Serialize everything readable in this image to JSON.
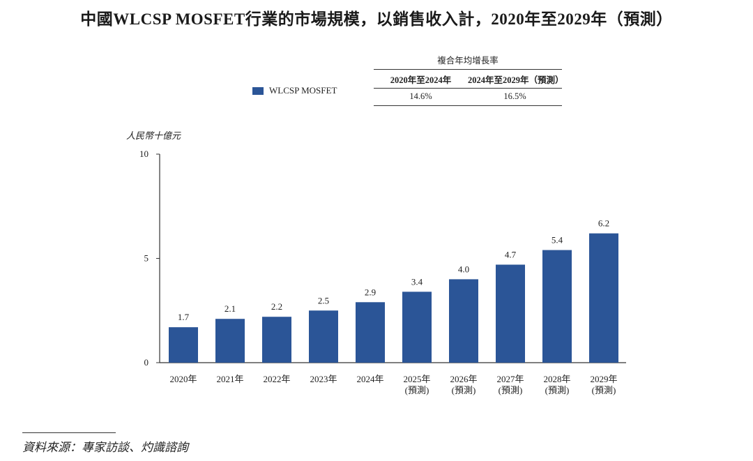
{
  "title": "中國WLCSP MOSFET行業的市場規模，以銷售收入計，2020年至2029年（預測）",
  "legend": {
    "label": "WLCSP MOSFET",
    "color": "#2b5597"
  },
  "cagr_table": {
    "header": "複合年均增長率",
    "periods": [
      "2020年至2024年",
      "2024年至2029年（預測）"
    ],
    "values": [
      "14.6%",
      "16.5%"
    ]
  },
  "unit_label": "人民幣十億元",
  "source": "資料來源：專家訪談、灼識諮詢",
  "chart_data": {
    "type": "bar",
    "title": "中國WLCSP MOSFET行業的市場規模，以銷售收入計，2020年至2029年（預測）",
    "ylabel": "人民幣十億元",
    "xlabel": "",
    "ylim": [
      0,
      10
    ],
    "yticks": [
      "0",
      "5",
      "10"
    ],
    "grid": false,
    "legend_position": "top-left",
    "categories": [
      "2020年",
      "2021年",
      "2022年",
      "2023年",
      "2024年",
      "2025年",
      "2026年",
      "2027年",
      "2028年",
      "2029年"
    ],
    "category_notes": [
      "",
      "",
      "",
      "",
      "",
      "(預測)",
      "(預測)",
      "(預測)",
      "(預測)",
      "(預測)"
    ],
    "series": [
      {
        "name": "WLCSP MOSFET",
        "values": [
          1.7,
          2.1,
          2.2,
          2.5,
          2.9,
          3.4,
          4.0,
          4.7,
          5.4,
          6.2
        ],
        "labels": [
          "1.7",
          "2.1",
          "2.2",
          "2.5",
          "2.9",
          "3.4",
          "4.0",
          "4.7",
          "5.4",
          "6.2"
        ]
      }
    ]
  }
}
